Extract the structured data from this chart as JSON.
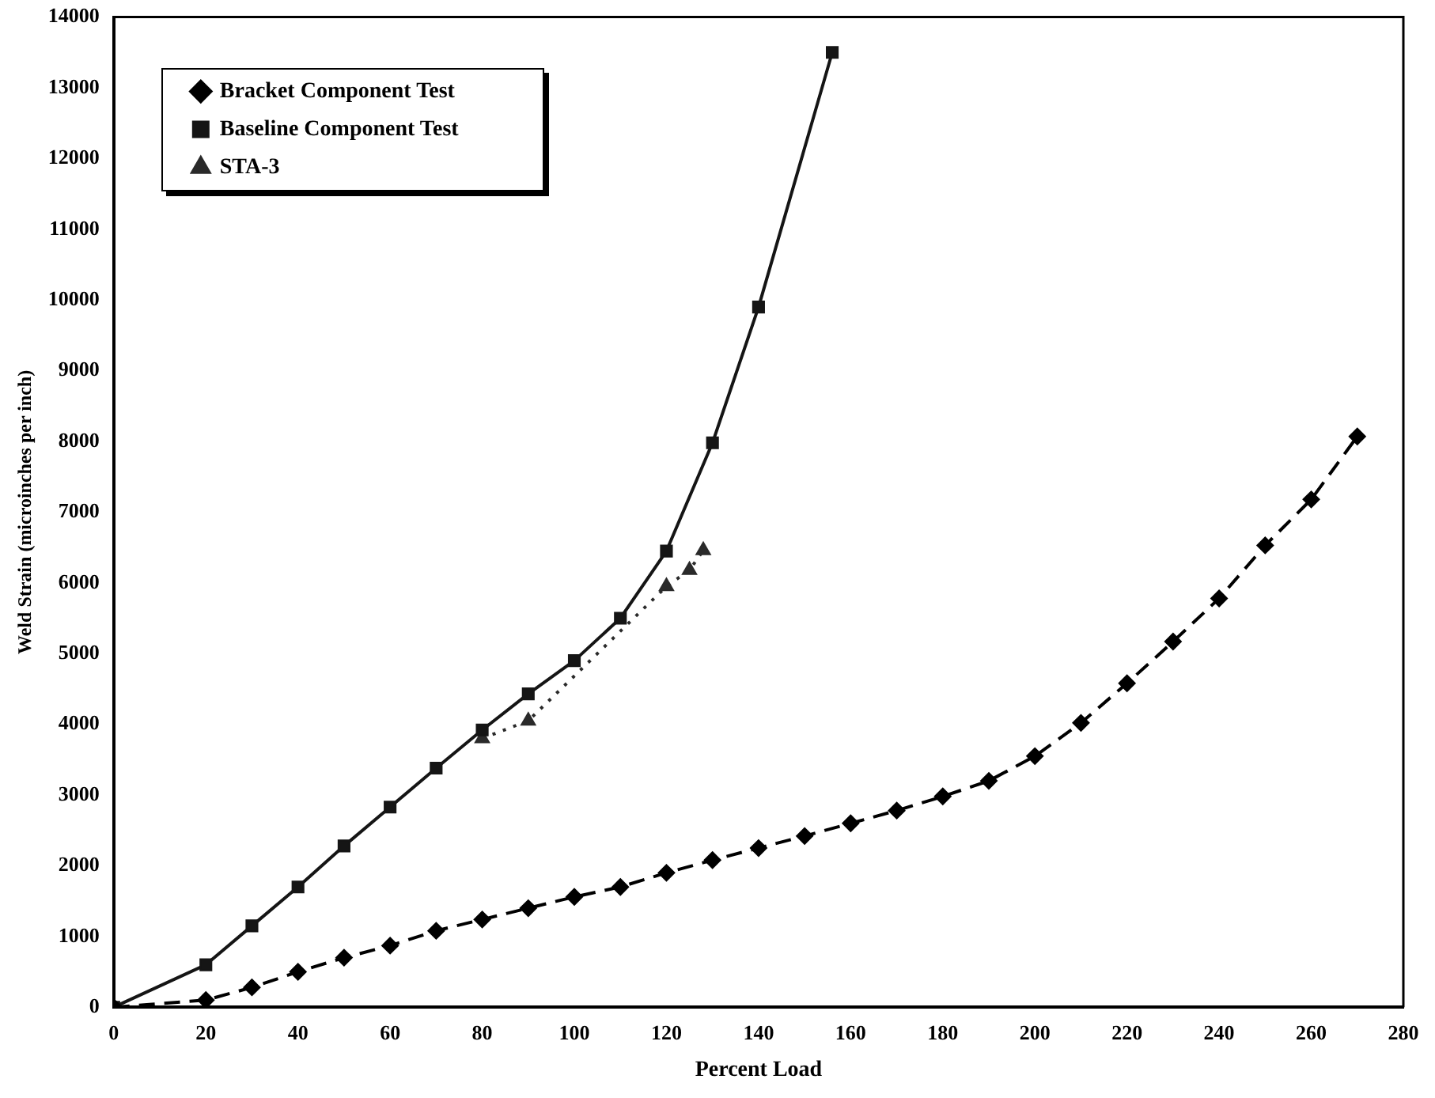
{
  "chart_data": {
    "type": "line",
    "xlabel": "Percent Load",
    "ylabel": "Weld Strain (microinches per inch)",
    "xlim": [
      0,
      280
    ],
    "xticks": [
      0,
      20,
      40,
      60,
      80,
      100,
      120,
      140,
      160,
      180,
      200,
      220,
      240,
      260,
      280
    ],
    "ylim": [
      0,
      14000
    ],
    "yticks": [
      0,
      1000,
      2000,
      3000,
      4000,
      5000,
      6000,
      7000,
      8000,
      9000,
      10000,
      11000,
      12000,
      13000,
      14000
    ],
    "grid": false,
    "legend": "top left",
    "series": [
      {
        "name": "Bracket Component Test",
        "color": "#000000",
        "line_style": "dashed",
        "marker": "diamond",
        "x": [
          0,
          20,
          30,
          40,
          50,
          60,
          70,
          80,
          90,
          100,
          110,
          120,
          130,
          140,
          150,
          160,
          170,
          180,
          190,
          200,
          210,
          220,
          230,
          240,
          250,
          260,
          270
        ],
        "values": [
          0,
          100,
          280,
          500,
          700,
          870,
          1080,
          1240,
          1400,
          1560,
          1700,
          1900,
          2080,
          2250,
          2420,
          2600,
          2780,
          2980,
          3200,
          3550,
          4020,
          4580,
          5170,
          5780,
          6530,
          7180,
          8070
        ]
      },
      {
        "name": "Baseline Component Test",
        "color": "#151515",
        "line_style": "solid",
        "marker": "square",
        "x": [
          0,
          20,
          30,
          40,
          50,
          60,
          70,
          80,
          90,
          100,
          110,
          120,
          130,
          140,
          156
        ],
        "values": [
          0,
          600,
          1150,
          1700,
          2280,
          2830,
          3380,
          3920,
          4430,
          4900,
          5500,
          6450,
          7980,
          9900,
          13500
        ]
      },
      {
        "name": "STA-3",
        "color": "#2a2a2a",
        "line_style": "dotted",
        "marker": "triangle",
        "x": [
          80,
          90,
          100,
          110,
          120,
          125,
          128
        ],
        "values": [
          3800,
          4050,
          null,
          null,
          5950,
          6180,
          6460
        ]
      }
    ]
  }
}
